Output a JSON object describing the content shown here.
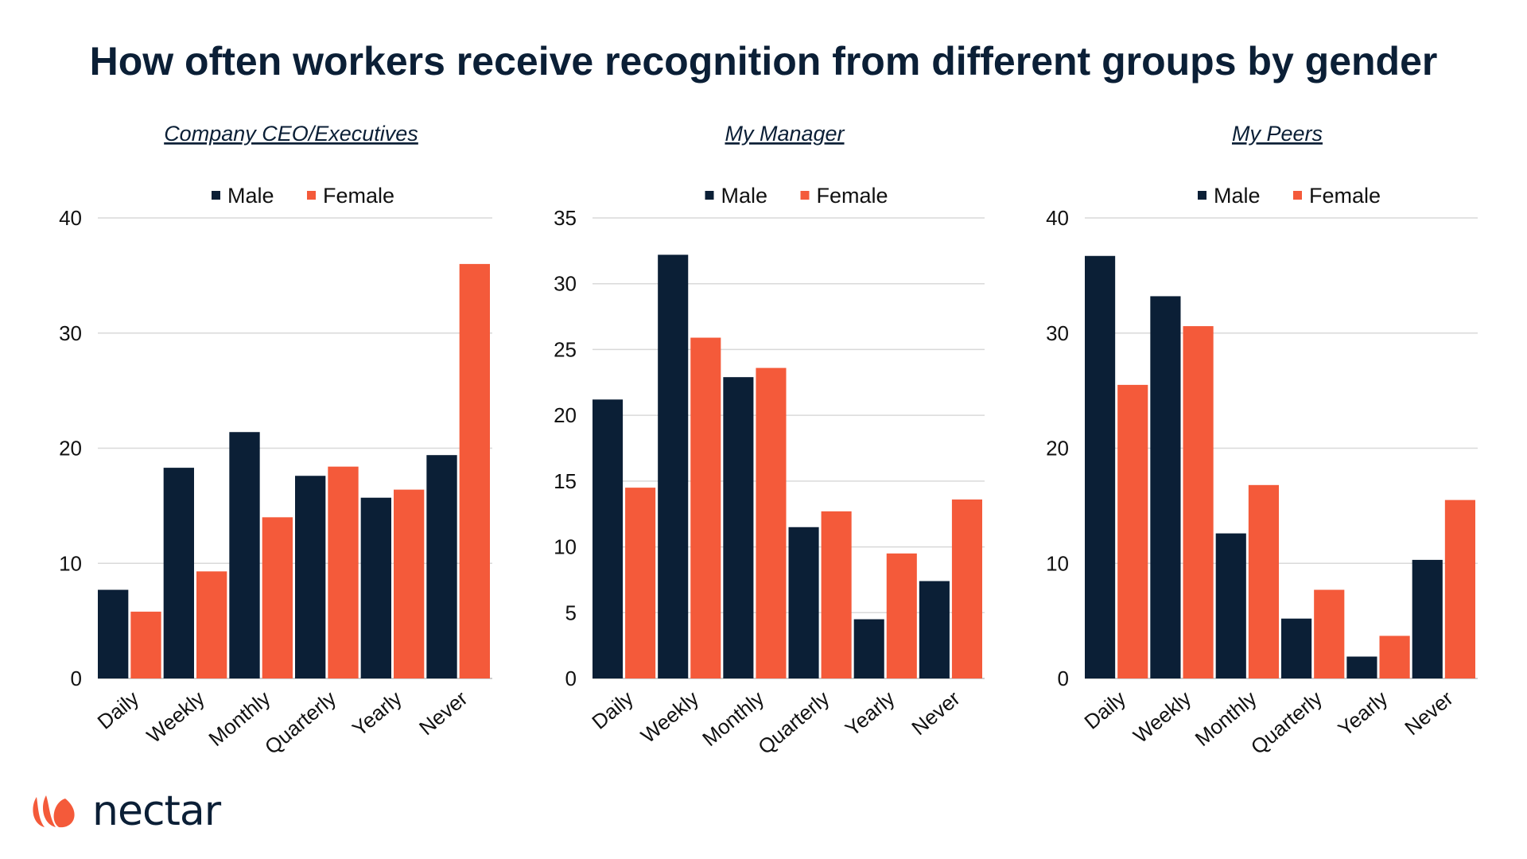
{
  "title": "How often workers receive recognition from different groups by gender",
  "colors": {
    "male": "#0b1f36",
    "female": "#f45a3a",
    "grid": "#d9d9d9"
  },
  "logo": {
    "text": "nectar",
    "icon": "nectar-petal-logo-icon"
  },
  "chart_data": [
    {
      "type": "bar",
      "title": "Company CEO/Executives",
      "categories": [
        "Daily",
        "Weekly",
        "Monthly",
        "Quarterly",
        "Yearly",
        "Never"
      ],
      "series": [
        {
          "name": "Male",
          "values": [
            7.7,
            18.3,
            21.4,
            17.6,
            15.7,
            19.4
          ]
        },
        {
          "name": "Female",
          "values": [
            5.8,
            9.3,
            14.0,
            18.4,
            16.4,
            36.0
          ]
        }
      ],
      "ylim": [
        0,
        40
      ],
      "yticks": [
        0,
        10,
        20,
        30,
        40
      ],
      "grid": true,
      "legend": "top"
    },
    {
      "type": "bar",
      "title": "My Manager",
      "categories": [
        "Daily",
        "Weekly",
        "Monthly",
        "Quarterly",
        "Yearly",
        "Never"
      ],
      "series": [
        {
          "name": "Male",
          "values": [
            21.2,
            32.2,
            22.9,
            11.5,
            4.5,
            7.4
          ]
        },
        {
          "name": "Female",
          "values": [
            14.5,
            25.9,
            23.6,
            12.7,
            9.5,
            13.6
          ]
        }
      ],
      "ylim": [
        0,
        35
      ],
      "yticks": [
        0,
        5,
        10,
        15,
        20,
        25,
        30,
        35
      ],
      "grid": true,
      "legend": "top"
    },
    {
      "type": "bar",
      "title": "My Peers",
      "categories": [
        "Daily",
        "Weekly",
        "Monthly",
        "Quarterly",
        "Yearly",
        "Never"
      ],
      "series": [
        {
          "name": "Male",
          "values": [
            36.7,
            33.2,
            12.6,
            5.2,
            1.9,
            10.3
          ]
        },
        {
          "name": "Female",
          "values": [
            25.5,
            30.6,
            16.8,
            7.7,
            3.7,
            15.5
          ]
        }
      ],
      "ylim": [
        0,
        40
      ],
      "yticks": [
        0,
        10,
        20,
        30,
        40
      ],
      "grid": true,
      "legend": "top"
    }
  ]
}
